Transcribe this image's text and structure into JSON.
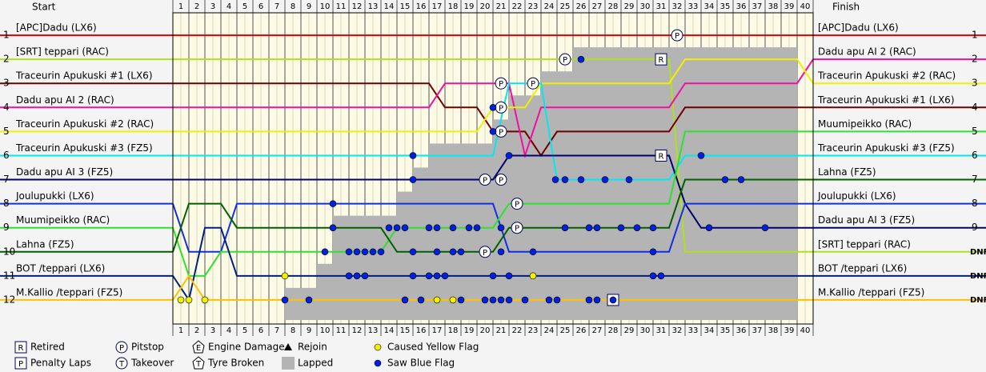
{
  "chart_data": {
    "type": "line",
    "start_label": "Start",
    "finish_label": "Finish",
    "x": [
      0,
      1,
      2,
      3,
      4,
      5,
      6,
      7,
      8,
      9,
      10,
      11,
      12,
      13,
      14,
      15,
      16,
      17,
      18,
      19,
      20,
      21,
      22,
      23,
      24,
      25,
      26,
      27,
      28,
      29,
      30,
      31,
      32,
      33,
      34,
      35,
      36,
      37,
      38,
      39,
      40
    ],
    "xlim": [
      0,
      40
    ],
    "xticks": [
      {
        "value": 0.5,
        "label": "1"
      },
      {
        "value": 1.5,
        "label": "2"
      },
      {
        "value": 2.5,
        "label": "3"
      },
      {
        "value": 3.5,
        "label": "4"
      },
      {
        "value": 4.5,
        "label": "5"
      },
      {
        "value": 5.5,
        "label": "6"
      },
      {
        "value": 6.5,
        "label": "7"
      },
      {
        "value": 7.5,
        "label": "8"
      },
      {
        "value": 8.5,
        "label": "9"
      },
      {
        "value": 9.5,
        "label": "10"
      },
      {
        "value": 10.5,
        "label": "11"
      },
      {
        "value": 11.5,
        "label": "12"
      },
      {
        "value": 12.5,
        "label": "13"
      },
      {
        "value": 13.5,
        "label": "14"
      },
      {
        "value": 14.5,
        "label": "15"
      },
      {
        "value": 15.5,
        "label": "16"
      },
      {
        "value": 16.5,
        "label": "17"
      },
      {
        "value": 17.5,
        "label": "18"
      },
      {
        "value": 18.5,
        "label": "19"
      },
      {
        "value": 19.5,
        "label": "20"
      },
      {
        "value": 20.5,
        "label": "21"
      },
      {
        "value": 21.5,
        "label": "22"
      },
      {
        "value": 22.5,
        "label": "23"
      },
      {
        "value": 23.5,
        "label": "24"
      },
      {
        "value": 24.5,
        "label": "25"
      },
      {
        "value": 25.5,
        "label": "26"
      },
      {
        "value": 26.5,
        "label": "27"
      },
      {
        "value": 27.5,
        "label": "28"
      },
      {
        "value": 28.5,
        "label": "29"
      },
      {
        "value": 29.5,
        "label": "30"
      },
      {
        "value": 30.5,
        "label": "31"
      },
      {
        "value": 31.5,
        "label": "32"
      },
      {
        "value": 32.5,
        "label": "33"
      },
      {
        "value": 33.5,
        "label": "34"
      },
      {
        "value": 34.5,
        "label": "35"
      },
      {
        "value": 35.5,
        "label": "36"
      },
      {
        "value": 36.5,
        "label": "37"
      },
      {
        "value": 37.5,
        "label": "38"
      },
      {
        "value": 38.5,
        "label": "39"
      },
      {
        "value": 39.5,
        "label": "40"
      }
    ],
    "ylim": [
      13,
      0
    ],
    "yticks": [
      1,
      2,
      3,
      4,
      5,
      6,
      7,
      8,
      9,
      10,
      11,
      12
    ],
    "series": [
      {
        "name": "[APC]Dadu (LX6)",
        "color": "#e00000",
        "values": [
          1,
          1,
          1,
          1,
          1,
          1,
          1,
          1,
          1,
          1,
          1,
          1,
          1,
          1,
          1,
          1,
          1,
          1,
          1,
          1,
          1,
          1,
          1,
          1,
          1,
          1,
          1,
          1,
          1,
          1,
          1,
          1,
          1,
          1,
          1,
          1,
          1,
          1,
          1,
          1,
          1
        ]
      },
      {
        "name": "[SRT] teppari (RAC)",
        "color": "#b0e020",
        "values": [
          2,
          2,
          2,
          2,
          2,
          2,
          2,
          2,
          2,
          2,
          2,
          2,
          2,
          2,
          2,
          2,
          2,
          2,
          2,
          2,
          2,
          2,
          2,
          2,
          2,
          2,
          2,
          2,
          2,
          2,
          2,
          2,
          10,
          10,
          10,
          10,
          10,
          10,
          10,
          10,
          10
        ]
      },
      {
        "name": "Traceurin Apukuski #1 (LX6)",
        "color": "#700000",
        "values": [
          3,
          3,
          3,
          3,
          3,
          3,
          3,
          3,
          3,
          3,
          3,
          3,
          3,
          3,
          3,
          3,
          3,
          4,
          4,
          4,
          5,
          5,
          5,
          6,
          5,
          5,
          5,
          5,
          5,
          5,
          5,
          5,
          4,
          4,
          4,
          4,
          4,
          4,
          4,
          4,
          4
        ]
      },
      {
        "name": "Dadu apu AI 2 (RAC)",
        "color": "#f010a0",
        "values": [
          4,
          4,
          4,
          4,
          4,
          4,
          4,
          4,
          4,
          4,
          4,
          4,
          4,
          4,
          4,
          4,
          4,
          3,
          3,
          3,
          3,
          3,
          6,
          4,
          4,
          4,
          4,
          4,
          4,
          4,
          4,
          4,
          3,
          3,
          3,
          3,
          3,
          3,
          3,
          3,
          2
        ]
      },
      {
        "name": "Traceurin Apukuski #2 (RAC)",
        "color": "#f0f000",
        "values": [
          5,
          5,
          5,
          5,
          5,
          5,
          5,
          5,
          5,
          5,
          5,
          5,
          5,
          5,
          5,
          5,
          5,
          5,
          5,
          5,
          4,
          4,
          4,
          3,
          3,
          3,
          3,
          3,
          3,
          3,
          3,
          3,
          2,
          2,
          2,
          2,
          2,
          2,
          2,
          2,
          3
        ]
      },
      {
        "name": "Traceurin Apukuski #3 (FZ5)",
        "color": "#00e8f0",
        "values": [
          6,
          6,
          6,
          6,
          6,
          6,
          6,
          6,
          6,
          6,
          6,
          6,
          6,
          6,
          6,
          6,
          6,
          6,
          6,
          6,
          6,
          3,
          3,
          3,
          7,
          7,
          7,
          7,
          7,
          7,
          7,
          7,
          6,
          6,
          6,
          6,
          6,
          6,
          6,
          6,
          6
        ]
      },
      {
        "name": "Dadu apu AI 3 (FZ5)",
        "color": "#000070",
        "values": [
          7,
          7,
          7,
          7,
          7,
          7,
          7,
          7,
          7,
          7,
          7,
          7,
          7,
          7,
          7,
          7,
          7,
          7,
          7,
          7,
          7,
          6,
          6,
          6,
          6,
          6,
          6,
          6,
          6,
          6,
          6,
          6,
          8,
          9,
          9,
          9,
          9,
          9,
          9,
          9,
          9
        ]
      },
      {
        "name": "Joulupukki (LX6)",
        "color": "#1030e0",
        "values": [
          8,
          10,
          10,
          10,
          8,
          8,
          8,
          8,
          8,
          8,
          8,
          8,
          8,
          8,
          8,
          8,
          8,
          8,
          8,
          8,
          8,
          10,
          10,
          10,
          10,
          10,
          10,
          10,
          10,
          10,
          10,
          10,
          8,
          8,
          8,
          8,
          8,
          8,
          8,
          8,
          8
        ]
      },
      {
        "name": "Muumipeikko (RAC)",
        "color": "#30e030",
        "values": [
          9,
          11,
          11,
          10,
          10,
          10,
          10,
          10,
          10,
          10,
          10,
          10,
          10,
          10,
          9,
          9,
          9,
          9,
          9,
          9,
          9,
          8,
          8,
          8,
          8,
          8,
          8,
          8,
          8,
          8,
          8,
          8,
          5,
          5,
          5,
          5,
          5,
          5,
          5,
          5,
          5
        ]
      },
      {
        "name": "Lahna (FZ5)",
        "color": "#006000",
        "values": [
          10,
          8,
          8,
          8,
          9,
          9,
          9,
          9,
          9,
          9,
          9,
          9,
          9,
          9,
          10,
          10,
          10,
          10,
          10,
          10,
          10,
          9,
          9,
          9,
          9,
          9,
          9,
          9,
          9,
          9,
          9,
          9,
          7,
          7,
          7,
          7,
          7,
          7,
          7,
          7,
          7
        ]
      },
      {
        "name": "BOT /teppari (LX6)",
        "color": "#002080",
        "values": [
          11,
          12,
          9,
          9,
          11,
          11,
          11,
          11,
          11,
          11,
          11,
          11,
          11,
          11,
          11,
          11,
          11,
          11,
          11,
          11,
          11,
          11,
          11,
          11,
          11,
          11,
          11,
          11,
          11,
          11,
          11,
          11,
          11,
          11,
          11,
          11,
          11,
          11,
          11,
          11,
          11
        ]
      },
      {
        "name": "M.Kallio /teppari (FZ5)",
        "color": "#ffc000",
        "values": [
          12,
          11,
          12,
          12,
          12,
          12,
          12,
          12,
          12,
          12,
          12,
          12,
          12,
          12,
          12,
          12,
          12,
          12,
          12,
          12,
          12,
          12,
          12,
          12,
          12,
          12,
          12,
          12,
          12,
          12,
          12,
          12,
          12,
          12,
          12,
          12,
          12,
          12,
          12,
          12,
          12
        ]
      }
    ],
    "finish_order": [
      {
        "name": "[APC]Dadu (LX6)"
      },
      {
        "name": "Dadu apu AI 2 (RAC)"
      },
      {
        "name": "Traceurin Apukuski #2 (RAC)"
      },
      {
        "name": "Traceurin Apukuski #1 (LX6)"
      },
      {
        "name": "Muumipeikko (RAC)"
      },
      {
        "name": "Traceurin Apukuski #3 (FZ5)"
      },
      {
        "name": "Lahna (FZ5)"
      },
      {
        "name": "Joulupukki (LX6)"
      },
      {
        "name": "Dadu apu AI 3 (FZ5)"
      },
      {
        "name": "[SRT] teppari (RAC)",
        "status": "DNF"
      },
      {
        "name": "BOT /teppari (LX6)",
        "status": "DNF"
      },
      {
        "name": "M.Kallio /teppari (FZ5)",
        "status": "DNF"
      }
    ],
    "lapped": [
      null,
      null,
      null,
      null,
      null,
      null,
      null,
      11.5,
      11.5,
      10.5,
      8.5,
      8.5,
      8.5,
      8.5,
      7.5,
      6.5,
      5.5,
      5.5,
      5.5,
      5.5,
      4.5,
      3.5,
      3.5,
      2.5,
      2.5,
      1.5,
      1.5,
      1.5,
      1.5,
      1.5,
      1.5,
      1.5,
      1.5,
      1.5,
      1.5,
      1.5,
      1.5,
      1.5,
      1.5,
      null
    ],
    "legend": [
      {
        "symbol": "R",
        "label": "Retired",
        "shape": "square",
        "events": [
          [
            30.5,
            2
          ],
          [
            30.5,
            6
          ]
        ]
      },
      {
        "symbol": "P",
        "label": "Penalty Laps",
        "shape": "square",
        "events": [
          [
            27.5,
            12
          ]
        ]
      },
      {
        "symbol": "P",
        "label": "Pitstop",
        "shape": "circle",
        "events": [
          [
            20.5,
            3
          ],
          [
            22.5,
            3
          ],
          [
            20.5,
            4
          ],
          [
            20.5,
            5
          ],
          [
            19.5,
            7
          ],
          [
            20.5,
            7
          ],
          [
            21.5,
            8
          ],
          [
            21.5,
            9
          ],
          [
            19.5,
            10
          ],
          [
            24.5,
            2
          ],
          [
            31.5,
            1
          ]
        ]
      },
      {
        "symbol": "T",
        "label": "Takeover",
        "shape": "circle"
      },
      {
        "symbol": "E",
        "label": "Engine Damage",
        "shape": "pentagon"
      },
      {
        "symbol": "T",
        "label": "Tyre Broken",
        "shape": "pentagon"
      },
      {
        "label": "Rejoin",
        "shape": "triangle"
      },
      {
        "label": "Lapped",
        "shape": "block",
        "color": "#b4b4b4"
      },
      {
        "label": "Caused Yellow Flag",
        "shape": "dot",
        "color": "#f0f000",
        "events": [
          [
            7,
            11
          ],
          [
            0.5,
            12
          ],
          [
            1,
            12
          ],
          [
            2,
            12
          ],
          [
            16.5,
            12
          ],
          [
            17.5,
            12
          ],
          [
            22.5,
            11
          ]
        ]
      },
      {
        "label": "Saw Blue Flag",
        "shape": "dot",
        "color": "#0020e0",
        "events": [
          [
            25.5,
            2
          ],
          [
            20,
            4
          ],
          [
            20,
            5
          ],
          [
            15,
            6
          ],
          [
            21,
            6
          ],
          [
            33,
            6
          ],
          [
            15,
            7
          ],
          [
            23.9,
            7
          ],
          [
            24.5,
            7
          ],
          [
            25.5,
            7
          ],
          [
            27,
            7
          ],
          [
            28.5,
            7
          ],
          [
            34.5,
            7
          ],
          [
            35.5,
            7
          ],
          [
            10,
            8
          ],
          [
            10,
            9
          ],
          [
            13.5,
            9
          ],
          [
            14,
            9
          ],
          [
            14.5,
            9
          ],
          [
            16,
            9
          ],
          [
            16.5,
            9
          ],
          [
            17.5,
            9
          ],
          [
            18.5,
            9
          ],
          [
            19,
            9
          ],
          [
            20.5,
            9
          ],
          [
            24.5,
            9
          ],
          [
            26,
            9
          ],
          [
            26.5,
            9
          ],
          [
            28,
            9
          ],
          [
            29,
            9
          ],
          [
            30,
            9
          ],
          [
            33.5,
            9
          ],
          [
            37,
            9
          ],
          [
            9.5,
            10
          ],
          [
            11,
            10
          ],
          [
            11.5,
            10
          ],
          [
            12,
            10
          ],
          [
            12.5,
            10
          ],
          [
            13,
            10
          ],
          [
            15,
            10
          ],
          [
            16.5,
            10
          ],
          [
            17.5,
            10
          ],
          [
            18,
            10
          ],
          [
            20.5,
            10
          ],
          [
            22.5,
            10
          ],
          [
            30,
            10
          ],
          [
            11,
            11
          ],
          [
            11.5,
            11
          ],
          [
            12,
            11
          ],
          [
            15,
            11
          ],
          [
            16,
            11
          ],
          [
            16.5,
            11
          ],
          [
            17,
            11
          ],
          [
            20,
            11
          ],
          [
            21,
            11
          ],
          [
            30,
            11
          ],
          [
            30.5,
            11
          ],
          [
            7,
            12
          ],
          [
            8.5,
            12
          ],
          [
            14.5,
            12
          ],
          [
            15.5,
            12
          ],
          [
            18,
            12
          ],
          [
            19.5,
            12
          ],
          [
            20,
            12
          ],
          [
            20.5,
            12
          ],
          [
            21,
            12
          ],
          [
            22,
            12
          ],
          [
            23.5,
            12
          ],
          [
            24,
            12
          ],
          [
            26,
            12
          ],
          [
            26.5,
            12
          ],
          [
            27.5,
            12
          ]
        ]
      }
    ]
  }
}
